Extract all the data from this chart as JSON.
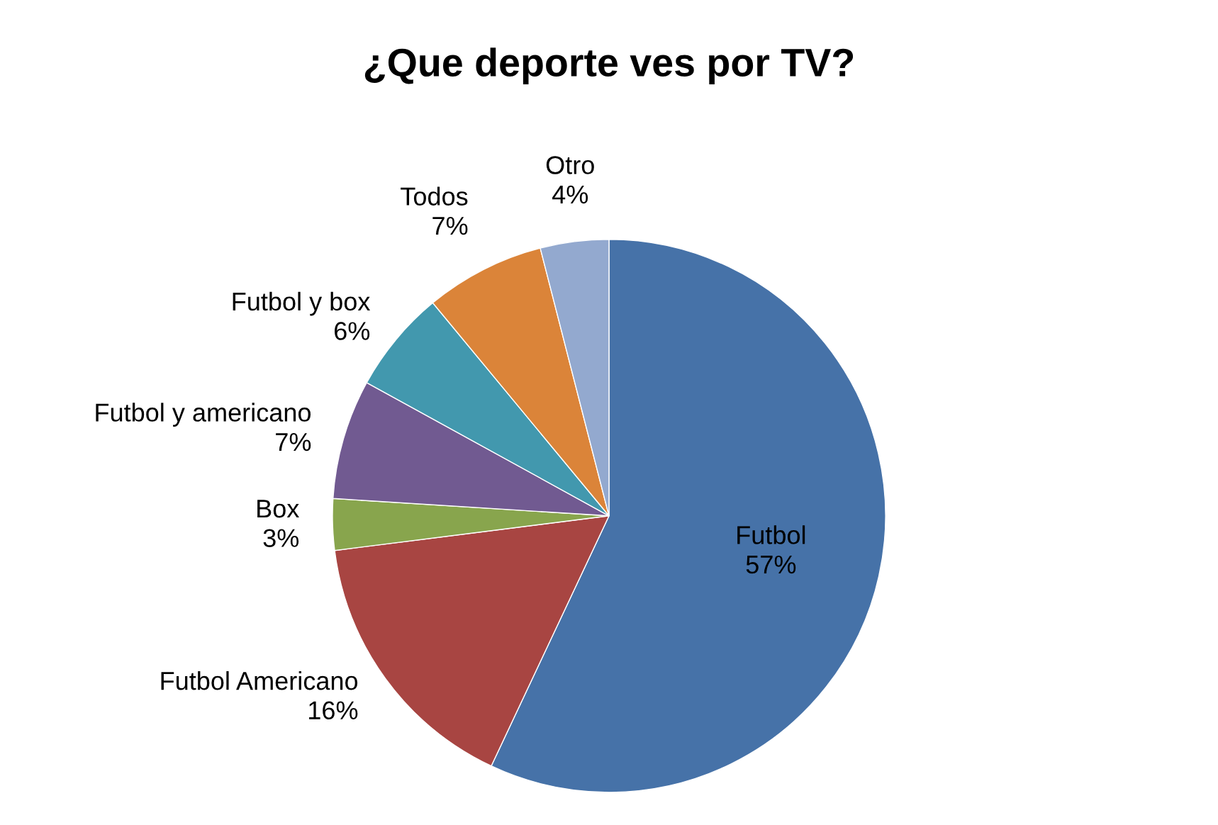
{
  "chart_data": {
    "type": "pie",
    "title": "¿Que deporte ves por TV?",
    "categories": [
      "Futbol",
      "Futbol Americano",
      "Box",
      "Futbol y americano",
      "Futbol y box",
      "Todos",
      "Otro"
    ],
    "values": [
      57,
      16,
      3,
      7,
      6,
      7,
      4
    ],
    "colors": [
      "#4672a8",
      "#a84542",
      "#88a54d",
      "#715a91",
      "#4298ae",
      "#db8439",
      "#93a9cf"
    ],
    "value_labels": [
      "57%",
      "16%",
      "3%",
      "7%",
      "6%",
      "7%",
      "4%"
    ],
    "legend": false
  }
}
